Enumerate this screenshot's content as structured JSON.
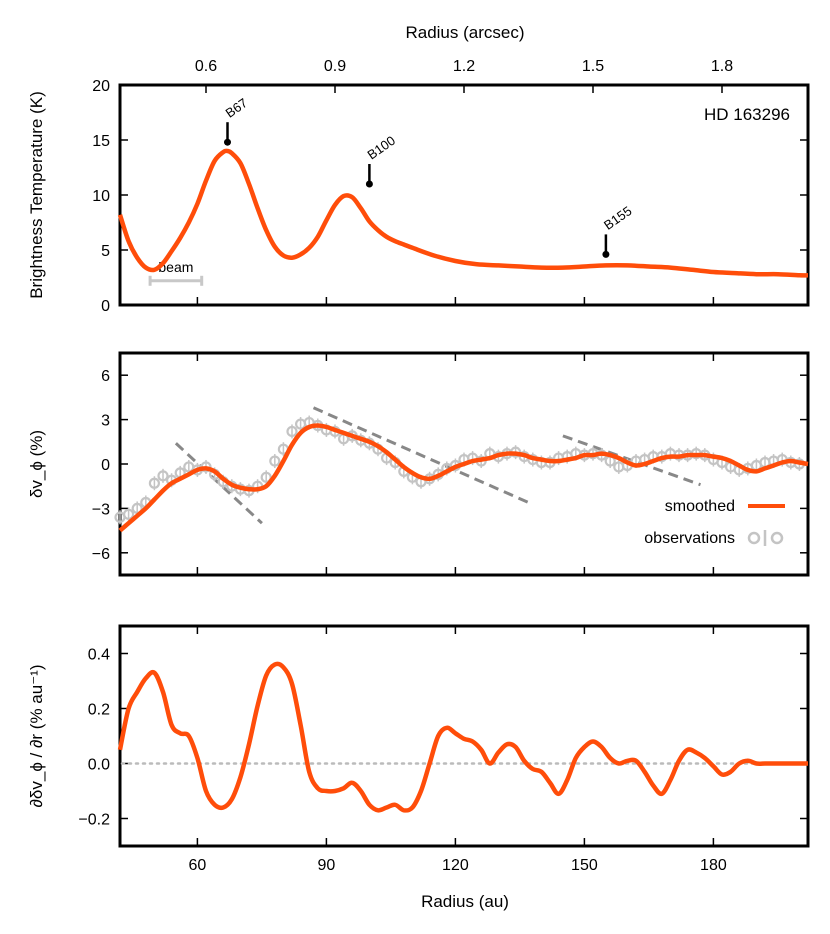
{
  "chart_data": [
    {
      "type": "line",
      "panel": "brightness",
      "title": "",
      "xlabel": "Radius (au)",
      "top_xlabel": "Radius (arcsec)",
      "top_ticks": [
        "0.6",
        "0.9",
        "1.2",
        "1.5",
        "1.8"
      ],
      "top_tick_values": [
        0.6,
        0.9,
        1.2,
        1.5,
        1.8
      ],
      "top_xlim": [
        0.4,
        2.0
      ],
      "ylabel": "Brightness Temperature (K)",
      "xlim": [
        42,
        202
      ],
      "ylim": [
        0,
        20
      ],
      "yticks": [
        0,
        5,
        10,
        15,
        20
      ],
      "annotation": "HD 163296",
      "beam_label": "beam",
      "beam_range": [
        49,
        61
      ],
      "beam_y": 2.2,
      "series": [
        {
          "name": "brightness",
          "color": "#ff4d0a",
          "x": [
            42,
            44,
            46,
            48,
            50,
            52,
            54,
            56,
            58,
            60,
            62,
            64,
            66,
            67,
            68,
            70,
            72,
            74,
            76,
            78,
            80,
            82,
            84,
            86,
            88,
            90,
            92,
            94,
            96,
            98,
            100,
            102,
            104,
            106,
            108,
            110,
            115,
            120,
            125,
            130,
            135,
            140,
            145,
            150,
            155,
            160,
            165,
            170,
            175,
            180,
            185,
            190,
            195,
            200,
            202
          ],
          "y": [
            8.2,
            5.8,
            4.3,
            3.4,
            3.2,
            3.8,
            4.9,
            6.1,
            7.5,
            9.2,
            11.3,
            13.1,
            13.9,
            14.0,
            13.8,
            12.9,
            11.0,
            8.8,
            6.8,
            5.3,
            4.5,
            4.3,
            4.6,
            5.2,
            6.2,
            7.7,
            9.1,
            9.9,
            9.8,
            8.8,
            7.6,
            6.8,
            6.2,
            5.8,
            5.5,
            5.2,
            4.5,
            4.0,
            3.7,
            3.6,
            3.5,
            3.4,
            3.4,
            3.5,
            3.6,
            3.6,
            3.5,
            3.4,
            3.2,
            3.0,
            2.9,
            2.8,
            2.8,
            2.7,
            2.7
          ]
        }
      ],
      "markers": [
        {
          "label": "B67",
          "x": 67,
          "y": 14.8
        },
        {
          "label": "B100",
          "x": 100,
          "y": 11.0
        },
        {
          "label": "B155",
          "x": 155,
          "y": 4.6
        }
      ]
    },
    {
      "type": "line",
      "panel": "velocity",
      "xlabel": "Radius (au)",
      "ylabel": "δv_ϕ   (%)",
      "xlim": [
        42,
        202
      ],
      "ylim": [
        -7.5,
        7.5
      ],
      "yticks": [
        -6,
        -3,
        0,
        3,
        6
      ],
      "ytick_labels": [
        "−6",
        "−3",
        "0",
        "3",
        "6"
      ],
      "legend": [
        "smoothed",
        "observations"
      ],
      "legend_position": "bottom-right",
      "series": [
        {
          "name": "smoothed",
          "color": "#ff4d0a",
          "x": [
            42,
            44,
            46,
            48,
            50,
            52,
            54,
            56,
            58,
            60,
            62,
            64,
            66,
            68,
            70,
            72,
            74,
            76,
            78,
            80,
            82,
            84,
            86,
            88,
            90,
            92,
            94,
            96,
            98,
            100,
            102,
            104,
            106,
            108,
            110,
            112,
            114,
            116,
            118,
            120,
            122,
            124,
            126,
            128,
            130,
            132,
            134,
            136,
            138,
            140,
            142,
            144,
            146,
            148,
            150,
            152,
            154,
            156,
            158,
            160,
            162,
            164,
            166,
            168,
            170,
            172,
            174,
            176,
            178,
            180,
            182,
            184,
            186,
            188,
            190,
            192,
            194,
            196,
            198,
            200,
            202
          ],
          "y": [
            -4.5,
            -4.0,
            -3.5,
            -3.0,
            -2.4,
            -1.8,
            -1.3,
            -1.0,
            -0.7,
            -0.4,
            -0.3,
            -0.5,
            -1.0,
            -1.4,
            -1.6,
            -1.7,
            -1.7,
            -1.5,
            -0.8,
            0.2,
            1.3,
            2.1,
            2.5,
            2.6,
            2.5,
            2.3,
            2.1,
            1.9,
            1.7,
            1.5,
            1.2,
            0.8,
            0.3,
            -0.2,
            -0.6,
            -0.9,
            -1.0,
            -0.8,
            -0.5,
            -0.2,
            0.0,
            0.2,
            0.3,
            0.4,
            0.6,
            0.7,
            0.7,
            0.6,
            0.4,
            0.3,
            0.2,
            0.2,
            0.3,
            0.4,
            0.6,
            0.6,
            0.7,
            0.6,
            0.4,
            0.1,
            -0.1,
            0.0,
            0.2,
            0.4,
            0.5,
            0.5,
            0.6,
            0.6,
            0.6,
            0.5,
            0.4,
            0.2,
            -0.1,
            -0.4,
            -0.5,
            -0.3,
            -0.1,
            0.1,
            0.2,
            0.1,
            0.0
          ]
        },
        {
          "name": "observations",
          "color": "#c4c4c4",
          "x": [
            42,
            44,
            46,
            48,
            50,
            52,
            54,
            56,
            58,
            60,
            62,
            64,
            66,
            68,
            70,
            72,
            74,
            76,
            78,
            80,
            82,
            84,
            86,
            88,
            90,
            92,
            94,
            96,
            98,
            100,
            102,
            104,
            106,
            108,
            110,
            112,
            114,
            116,
            118,
            120,
            122,
            124,
            126,
            128,
            130,
            132,
            134,
            136,
            138,
            140,
            142,
            144,
            146,
            148,
            150,
            152,
            154,
            156,
            158,
            160,
            162,
            164,
            166,
            168,
            170,
            172,
            174,
            176,
            178,
            180,
            182,
            184,
            186,
            188,
            190,
            192,
            194,
            196,
            198,
            200
          ],
          "y": [
            -3.6,
            -3.4,
            -3.0,
            -2.6,
            -1.3,
            -0.8,
            -1.1,
            -0.6,
            -0.2,
            -0.4,
            -0.2,
            -0.7,
            -1.2,
            -1.5,
            -1.7,
            -1.8,
            -1.5,
            -0.9,
            0.2,
            1.0,
            2.2,
            2.7,
            2.8,
            2.6,
            2.3,
            2.2,
            1.7,
            1.9,
            1.6,
            1.4,
            1.0,
            0.4,
            0.1,
            -0.5,
            -0.9,
            -1.2,
            -1.0,
            -0.7,
            -0.3,
            -0.1,
            0.3,
            0.4,
            0.2,
            0.7,
            0.5,
            0.7,
            0.8,
            0.5,
            0.3,
            0.1,
            0.1,
            0.4,
            0.5,
            0.7,
            0.6,
            0.7,
            0.6,
            0.2,
            -0.2,
            -0.1,
            0.2,
            0.3,
            0.5,
            0.5,
            0.7,
            0.6,
            0.6,
            0.7,
            0.6,
            0.3,
            0.1,
            -0.2,
            -0.4,
            -0.3,
            -0.1,
            0.1,
            0.2,
            0.3,
            0.1,
            0.0
          ]
        }
      ],
      "trend_lines": [
        {
          "x": [
            55,
            75
          ],
          "y": [
            1.4,
            -4.0
          ]
        },
        {
          "x": [
            87,
            137
          ],
          "y": [
            3.8,
            -2.6
          ]
        },
        {
          "x": [
            145,
            177
          ],
          "y": [
            1.9,
            -1.4
          ]
        }
      ]
    },
    {
      "type": "line",
      "panel": "gradient",
      "xlabel": "Radius (au)",
      "ylabel": "∂δv_ϕ / ∂r   (% au⁻¹)",
      "xlim": [
        42,
        202
      ],
      "ylim": [
        -0.3,
        0.5
      ],
      "yticks": [
        -0.2,
        0.0,
        0.2,
        0.4
      ],
      "ytick_labels": [
        "−0.2",
        "0.0",
        "0.2",
        "0.4"
      ],
      "xticks": [
        60,
        90,
        120,
        150,
        180
      ],
      "xtick_labels": [
        "60",
        "90",
        "120",
        "150",
        "180"
      ],
      "zero_line": true,
      "series": [
        {
          "name": "gradient",
          "color": "#ff4d0a",
          "x": [
            42,
            44,
            46,
            48,
            50,
            52,
            54,
            56,
            58,
            60,
            62,
            64,
            66,
            68,
            70,
            72,
            74,
            76,
            78,
            80,
            82,
            84,
            86,
            88,
            90,
            92,
            94,
            96,
            98,
            100,
            102,
            104,
            106,
            108,
            110,
            112,
            114,
            116,
            118,
            120,
            122,
            124,
            126,
            128,
            130,
            132,
            134,
            136,
            138,
            140,
            142,
            144,
            146,
            148,
            150,
            152,
            154,
            156,
            158,
            160,
            162,
            164,
            166,
            168,
            170,
            172,
            174,
            176,
            178,
            180,
            182,
            184,
            186,
            188,
            190,
            192,
            194,
            196,
            198,
            200,
            202
          ],
          "y": [
            0.05,
            0.2,
            0.26,
            0.31,
            0.33,
            0.26,
            0.14,
            0.11,
            0.1,
            0.02,
            -0.1,
            -0.15,
            -0.16,
            -0.13,
            -0.05,
            0.07,
            0.21,
            0.32,
            0.36,
            0.35,
            0.29,
            0.14,
            -0.03,
            -0.09,
            -0.1,
            -0.1,
            -0.09,
            -0.07,
            -0.1,
            -0.15,
            -0.17,
            -0.16,
            -0.15,
            -0.17,
            -0.16,
            -0.1,
            0.0,
            0.1,
            0.13,
            0.11,
            0.09,
            0.08,
            0.05,
            0.0,
            0.04,
            0.07,
            0.06,
            0.01,
            -0.02,
            -0.03,
            -0.07,
            -0.11,
            -0.06,
            0.02,
            0.06,
            0.08,
            0.06,
            0.02,
            0.0,
            0.01,
            0.01,
            -0.03,
            -0.08,
            -0.11,
            -0.06,
            0.01,
            0.05,
            0.04,
            0.02,
            -0.01,
            -0.04,
            -0.03,
            0.0,
            0.01,
            0.0,
            0.0,
            0.0,
            0.0,
            0.0,
            0.0,
            0.0
          ]
        }
      ]
    }
  ]
}
